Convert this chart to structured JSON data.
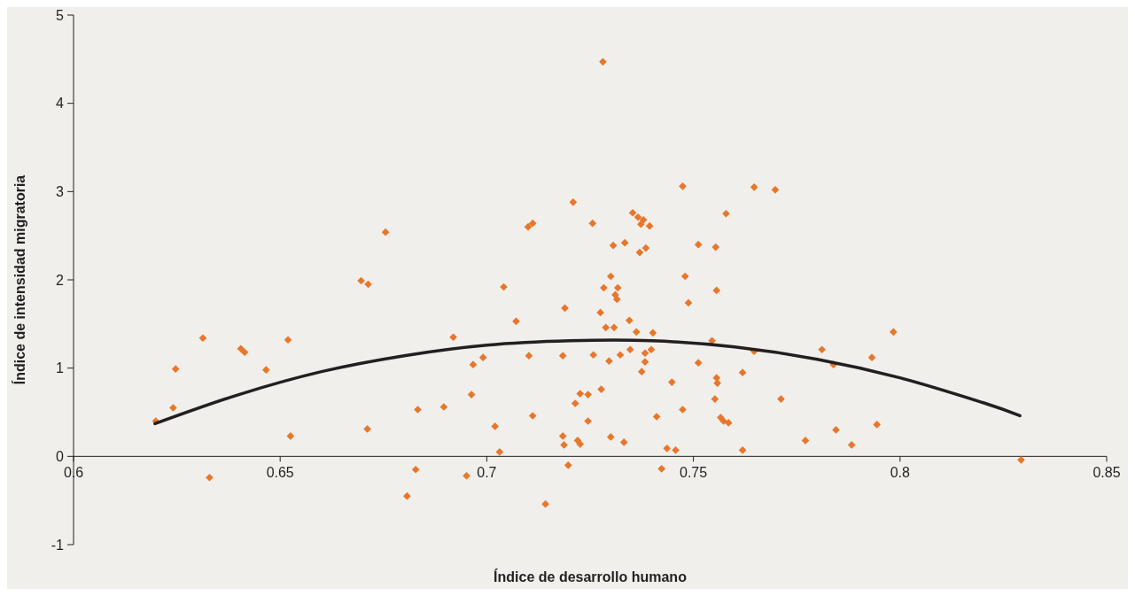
{
  "chart_data": {
    "type": "scatter",
    "xlabel": "Índice de desarrollo humano",
    "ylabel": "Índice de intensidad migratoria",
    "xlim": [
      0.6,
      0.85
    ],
    "ylim": [
      -1,
      5
    ],
    "xticks": [
      0.6,
      0.65,
      0.7,
      0.75,
      0.8,
      0.85
    ],
    "yticks": [
      -1,
      0,
      1,
      2,
      3,
      4,
      5
    ],
    "grid": false,
    "series": [
      {
        "marker": "diamond",
        "color": "#e8762b",
        "x": [
          0.6199,
          0.6241,
          0.6247,
          0.6313,
          0.6329,
          0.6405,
          0.6414,
          0.6466,
          0.6519,
          0.6525,
          0.6696,
          0.6713,
          0.6711,
          0.6755,
          0.6807,
          0.6828,
          0.6833,
          0.6896,
          0.6919,
          0.6951,
          0.6963,
          0.6967,
          0.6991,
          0.702,
          0.7031,
          0.7041,
          0.7071,
          0.71,
          0.7111,
          0.7102,
          0.7111,
          0.7142,
          0.7184,
          0.7187,
          0.7189,
          0.7184,
          0.7197,
          0.7209,
          0.7214,
          0.722,
          0.7226,
          0.7226,
          0.7245,
          0.7245,
          0.7258,
          0.7256,
          0.7275,
          0.7277,
          0.7281,
          0.7283,
          0.7288,
          0.7296,
          0.73,
          0.73,
          0.7306,
          0.7308,
          0.7311,
          0.7315,
          0.7317,
          0.7323,
          0.7332,
          0.7334,
          0.7345,
          0.7347,
          0.7353,
          0.7362,
          0.7366,
          0.737,
          0.7373,
          0.7375,
          0.7379,
          0.7383,
          0.7383,
          0.7385,
          0.7394,
          0.7398,
          0.7402,
          0.7411,
          0.7423,
          0.7436,
          0.7448,
          0.7457,
          0.7474,
          0.7474,
          0.748,
          0.7488,
          0.7512,
          0.7512,
          0.7545,
          0.7554,
          0.7552,
          0.7556,
          0.7556,
          0.7558,
          0.7566,
          0.7573,
          0.7585,
          0.7579,
          0.7619,
          0.7619,
          0.7647,
          0.7647,
          0.7698,
          0.7712,
          0.7771,
          0.7811,
          0.7839,
          0.7845,
          0.7883,
          0.7932,
          0.7944,
          0.7984,
          0.8293
        ],
        "values": [
          0.4,
          0.55,
          0.99,
          1.34,
          -0.24,
          1.22,
          1.18,
          0.98,
          1.32,
          0.23,
          1.99,
          1.95,
          0.31,
          2.54,
          -0.45,
          -0.15,
          0.53,
          0.56,
          1.35,
          -0.22,
          0.7,
          1.04,
          1.12,
          0.34,
          0.05,
          1.92,
          1.53,
          2.6,
          2.64,
          1.14,
          0.46,
          -0.54,
          0.23,
          0.13,
          1.68,
          1.14,
          -0.1,
          2.88,
          0.6,
          0.18,
          0.14,
          0.71,
          0.7,
          0.4,
          1.15,
          2.64,
          1.63,
          0.76,
          4.47,
          1.91,
          1.46,
          1.08,
          2.04,
          0.22,
          2.39,
          1.46,
          1.83,
          1.78,
          1.91,
          1.15,
          0.16,
          2.42,
          1.54,
          1.21,
          2.76,
          1.41,
          2.71,
          2.31,
          2.63,
          0.96,
          2.68,
          1.07,
          1.17,
          2.36,
          2.61,
          1.21,
          1.4,
          0.45,
          -0.14,
          0.09,
          0.84,
          0.07,
          3.06,
          0.53,
          2.04,
          1.74,
          2.4,
          1.06,
          1.31,
          2.37,
          0.65,
          1.88,
          0.89,
          0.83,
          0.44,
          0.4,
          0.38,
          2.75,
          0.07,
          0.95,
          3.05,
          1.19,
          3.02,
          0.65,
          0.18,
          1.21,
          1.04,
          0.3,
          0.13,
          1.12,
          0.36,
          1.41,
          -0.04
        ]
      },
      {
        "type": "line",
        "marker": "none",
        "line_style": "solid",
        "color": "#231f20",
        "x": [
          0.6197,
          0.64,
          0.66,
          0.68,
          0.7,
          0.72,
          0.74,
          0.76,
          0.78,
          0.8,
          0.82,
          0.829
        ],
        "values": [
          0.37,
          0.7,
          0.96,
          1.14,
          1.26,
          1.31,
          1.31,
          1.24,
          1.1,
          0.89,
          0.61,
          0.46
        ]
      }
    ]
  }
}
